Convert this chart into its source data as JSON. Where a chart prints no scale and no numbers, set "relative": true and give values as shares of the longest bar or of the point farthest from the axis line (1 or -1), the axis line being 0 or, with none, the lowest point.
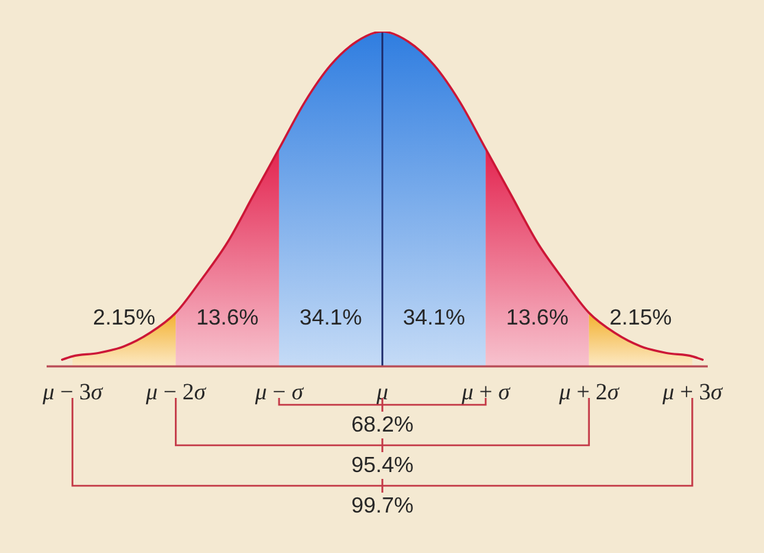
{
  "chart_data": {
    "type": "area",
    "relative": true,
    "x": [
      -3.1,
      -3,
      -2.75,
      -2.5,
      -2.25,
      -2,
      -1.75,
      -1.5,
      -1.25,
      -1,
      -0.75,
      -0.5,
      -0.25,
      0,
      0.25,
      0.5,
      0.75,
      1,
      1.25,
      1.5,
      1.75,
      2,
      2.25,
      2.5,
      2.75,
      3,
      3.1
    ],
    "series": [
      {
        "color": "#f3b02e",
        "values": [
          null,
          0.03,
          0.04,
          0.06,
          0.1,
          0.16,
          null,
          null,
          null,
          null,
          null,
          null,
          null,
          null,
          null,
          null,
          null,
          null,
          null,
          null,
          null,
          null,
          null,
          null,
          null,
          null,
          null
        ]
      },
      {
        "color": "#e3244f",
        "values": [
          null,
          null,
          null,
          null,
          null,
          0.16,
          0.26,
          0.37,
          0.51,
          0.65,
          null,
          null,
          null,
          null,
          null,
          null,
          null,
          null,
          null,
          null,
          null,
          null,
          null,
          null,
          null,
          null,
          null
        ]
      },
      {
        "color": "#2f7de0",
        "values": [
          null,
          null,
          null,
          null,
          null,
          null,
          null,
          null,
          null,
          0.65,
          0.79,
          0.9,
          0.97,
          1,
          null,
          null,
          null,
          null,
          null,
          null,
          null,
          null,
          null,
          null,
          null,
          null,
          null
        ]
      },
      {
        "color": "#2f7de0",
        "values": [
          null,
          null,
          null,
          null,
          null,
          null,
          null,
          null,
          null,
          null,
          null,
          null,
          null,
          1,
          0.97,
          0.9,
          0.79,
          0.65,
          null,
          null,
          null,
          null,
          null,
          null,
          null,
          null,
          null
        ]
      },
      {
        "color": "#e3244f",
        "values": [
          null,
          null,
          null,
          null,
          null,
          null,
          null,
          null,
          null,
          null,
          null,
          null,
          null,
          null,
          null,
          null,
          null,
          0.65,
          0.51,
          0.37,
          0.26,
          0.16,
          null,
          null,
          null,
          null,
          null
        ]
      },
      {
        "color": "#f3b02e",
        "values": [
          null,
          null,
          null,
          null,
          null,
          null,
          null,
          null,
          null,
          null,
          null,
          null,
          null,
          null,
          null,
          null,
          null,
          null,
          null,
          null,
          null,
          0.16,
          0.1,
          0.06,
          0.04,
          0.03,
          null
        ]
      },
      {
        "type": "line",
        "color": "#cc1636",
        "values": [
          0.02,
          0.03,
          0.04,
          0.06,
          0.1,
          0.16,
          0.26,
          0.37,
          0.51,
          0.65,
          0.79,
          0.9,
          0.97,
          1,
          0.97,
          0.9,
          0.79,
          0.65,
          0.51,
          0.37,
          0.26,
          0.16,
          0.1,
          0.06,
          0.04,
          0.03,
          0.02
        ]
      }
    ],
    "xlim": [
      -3.25,
      3.15
    ],
    "xticks": [
      {
        "value": -3,
        "label": "μ − 3σ"
      },
      {
        "value": -2,
        "label": "μ − 2σ"
      },
      {
        "value": -1,
        "label": "μ − σ"
      },
      {
        "value": 0,
        "label": "μ"
      },
      {
        "value": 1,
        "label": "μ + σ"
      },
      {
        "value": 2,
        "label": "μ + 2σ"
      },
      {
        "value": 3,
        "label": "μ + 3σ"
      }
    ],
    "ref_lines": [
      {
        "axis": "x",
        "value": 0,
        "color": "#1d2b6b"
      }
    ],
    "annotations": [
      "2.15%",
      "13.6%",
      "34.1%",
      "34.1%",
      "13.6%",
      "2.15%",
      "68.2%",
      "95.4%",
      "99.7%"
    ],
    "marker": "none"
  }
}
